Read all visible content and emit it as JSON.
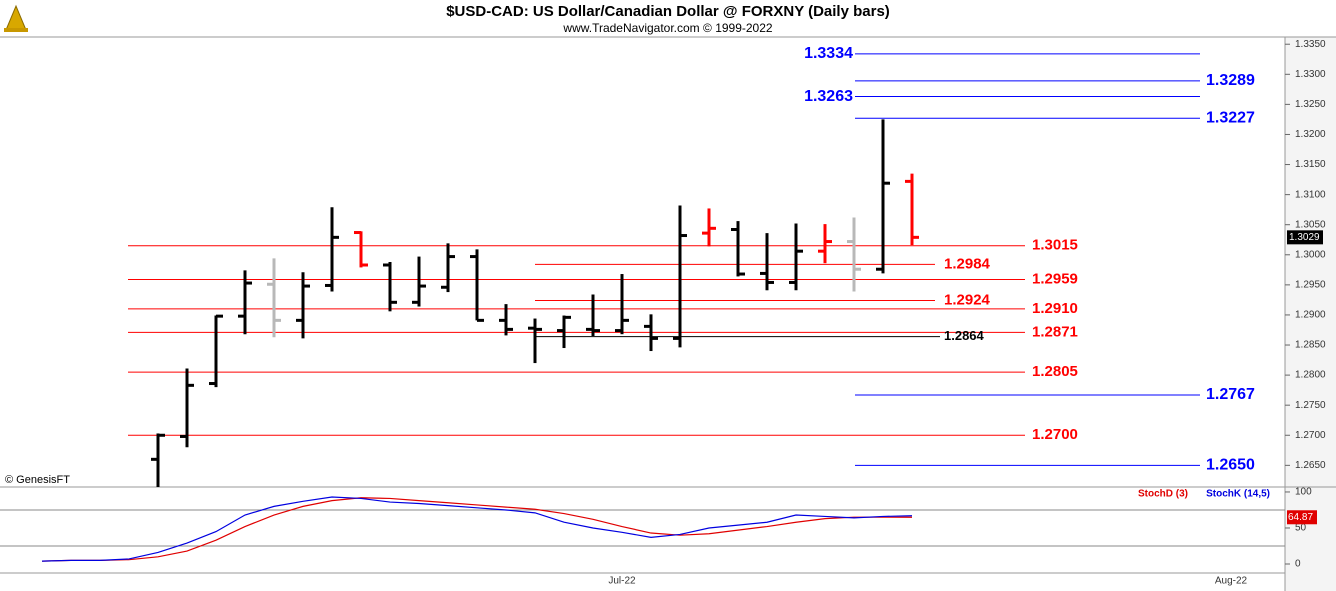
{
  "chart_data": [
    {
      "type": "ohlc",
      "title": "$USD-CAD:  US Dollar/Canadian Dollar @ FORXNY  (Daily bars)",
      "subtitle": "www.TradeNavigator.com © 1999-2022",
      "annotation": "© GenesisFT",
      "categories": [
        null,
        null,
        null,
        null,
        null,
        null,
        null,
        null,
        null,
        null,
        null,
        null,
        null,
        null,
        null,
        null,
        null,
        null,
        null,
        null,
        "Jul-22",
        null,
        null,
        null,
        null,
        null,
        null,
        null,
        null,
        null,
        null,
        null,
        null,
        null,
        null,
        null,
        null,
        null,
        null,
        null,
        null,
        "Aug-22",
        null
      ],
      "open": [
        null,
        null,
        null,
        null,
        1.266,
        1.2698,
        1.2786,
        1.2898,
        1.2951,
        1.2891,
        1.2949,
        1.3037,
        1.2983,
        1.2921,
        1.2946,
        1.2997,
        1.2891,
        1.2878,
        1.2874,
        1.2876,
        1.2874,
        1.2881,
        1.2861,
        1.3036,
        1.3042,
        1.2969,
        1.2954,
        1.3006,
        1.3022,
        1.2976,
        1.3122,
        null,
        null,
        null,
        null,
        null,
        null,
        null,
        null,
        null,
        null,
        null,
        null
      ],
      "high": [
        null,
        null,
        null,
        null,
        1.2703,
        1.2811,
        1.2899,
        1.2974,
        1.2994,
        1.2971,
        1.3079,
        1.3039,
        1.2988,
        1.2997,
        1.3019,
        1.3009,
        1.2918,
        1.2894,
        1.2899,
        1.2934,
        1.2968,
        1.2901,
        1.3082,
        1.3077,
        1.3056,
        1.3036,
        1.3052,
        1.3051,
        1.3062,
        1.3225,
        1.3135,
        null,
        null,
        null,
        null,
        null,
        null,
        null,
        null,
        null,
        null,
        null,
        null
      ],
      "low": [
        null,
        null,
        null,
        null,
        1.26,
        1.268,
        1.278,
        1.2868,
        1.2863,
        1.2861,
        1.2939,
        1.2979,
        1.2906,
        1.2914,
        1.2938,
        1.2891,
        1.2866,
        1.282,
        1.2845,
        1.2865,
        1.2868,
        1.284,
        1.2846,
        1.3014,
        1.2964,
        1.2941,
        1.2941,
        1.2986,
        1.2939,
        1.2969,
        1.3016,
        null,
        null,
        null,
        null,
        null,
        null,
        null,
        null,
        null,
        null,
        null,
        null
      ],
      "close": [
        null,
        null,
        null,
        null,
        1.27,
        1.2783,
        1.2898,
        1.2953,
        1.2891,
        1.2948,
        1.3029,
        1.2983,
        1.2921,
        1.2948,
        1.2997,
        1.2891,
        1.2876,
        1.2876,
        1.2896,
        1.2874,
        1.2891,
        1.2861,
        1.3032,
        1.3044,
        1.2968,
        1.2954,
        1.3006,
        1.3022,
        1.2976,
        1.3119,
        1.3029,
        null,
        null,
        null,
        null,
        null,
        null,
        null,
        null,
        null,
        null,
        null,
        null
      ],
      "bar_colors": [
        null,
        null,
        null,
        null,
        "#000000",
        "#000000",
        "#000000",
        "#000000",
        "#b8b8b8",
        "#000000",
        "#000000",
        "#ff0000",
        "#000000",
        "#000000",
        "#000000",
        "#000000",
        "#000000",
        "#000000",
        "#000000",
        "#000000",
        "#000000",
        "#000000",
        "#000000",
        "#ff0000",
        "#000000",
        "#000000",
        "#000000",
        "#ff0000",
        "#b8b8b8",
        "#000000",
        "#ff0000",
        null,
        null,
        null,
        null,
        null,
        null,
        null,
        null,
        null,
        null,
        null,
        null
      ],
      "levels": [
        {
          "value": 1.3334,
          "color": "#0000ff"
        },
        {
          "value": 1.3289,
          "color": "#0000ff"
        },
        {
          "value": 1.3263,
          "color": "#0000ff"
        },
        {
          "value": 1.3227,
          "color": "#0000ff"
        },
        {
          "value": 1.3015,
          "color": "#ff0000"
        },
        {
          "value": 1.2984,
          "color": "#ff0000"
        },
        {
          "value": 1.2959,
          "color": "#ff0000"
        },
        {
          "value": 1.2924,
          "color": "#ff0000"
        },
        {
          "value": 1.291,
          "label": "1.2910",
          "color": "#ff0000"
        },
        {
          "value": 1.2871,
          "color": "#ff0000"
        },
        {
          "value": 1.2864,
          "color": "#000000"
        },
        {
          "value": 1.2805,
          "color": "#ff0000"
        },
        {
          "value": 1.2767,
          "color": "#0000ff"
        },
        {
          "value": 1.27,
          "label": "1.2700",
          "color": "#ff0000"
        },
        {
          "value": 1.265,
          "label": "1.2650",
          "color": "#0000ff"
        }
      ],
      "ylim": [
        1.2614,
        1.3362
      ],
      "yticks": [
        {
          "value": 1.265,
          "label": "1.2650"
        },
        {
          "value": 1.27,
          "label": "1.2700"
        },
        {
          "value": 1.275,
          "label": "1.2750"
        },
        {
          "value": 1.28,
          "label": "1.2800"
        },
        {
          "value": 1.285,
          "label": "1.2850"
        },
        {
          "value": 1.29,
          "label": "1.2900"
        },
        {
          "value": 1.295,
          "label": "1.2950"
        },
        {
          "value": 1.3,
          "label": "1.3000"
        },
        {
          "value": 1.305,
          "label": "1.3050"
        },
        {
          "value": 1.31,
          "label": "1.3100"
        },
        {
          "value": 1.315,
          "label": "1.3150"
        },
        {
          "value": 1.32,
          "label": "1.3200"
        },
        {
          "value": 1.325,
          "label": "1.3250"
        },
        {
          "value": 1.33,
          "label": "1.3300"
        },
        {
          "value": 1.335,
          "label": "1.3350"
        }
      ]
    },
    {
      "type": "line",
      "series": [
        {
          "name": "StochD (3)",
          "color": "#e00000",
          "values": [
            4,
            5,
            5,
            6,
            10,
            18,
            33,
            52,
            68,
            80,
            88,
            92,
            91,
            88,
            85,
            82,
            79,
            76,
            70,
            62,
            52,
            43,
            40,
            42,
            47,
            52,
            58,
            63,
            65,
            65,
            64.87,
            null,
            null,
            null,
            null,
            null,
            null,
            null,
            null,
            null,
            null,
            null,
            null
          ]
        },
        {
          "name": "StochK (14,5)",
          "color": "#0000e0",
          "values": [
            4,
            5,
            5,
            7,
            16,
            29,
            45,
            68,
            80,
            87,
            93,
            91,
            86,
            84,
            81,
            78,
            75,
            71,
            58,
            50,
            44,
            37,
            41,
            50,
            54,
            58,
            68,
            66,
            64,
            66,
            67,
            null,
            null,
            null,
            null,
            null,
            null,
            null,
            null,
            null,
            null,
            null,
            null
          ]
        }
      ],
      "hlines": [
        25,
        75
      ],
      "ylim": [
        -12.5,
        106.9
      ],
      "yticks": [
        0,
        50,
        100
      ]
    }
  ]
}
